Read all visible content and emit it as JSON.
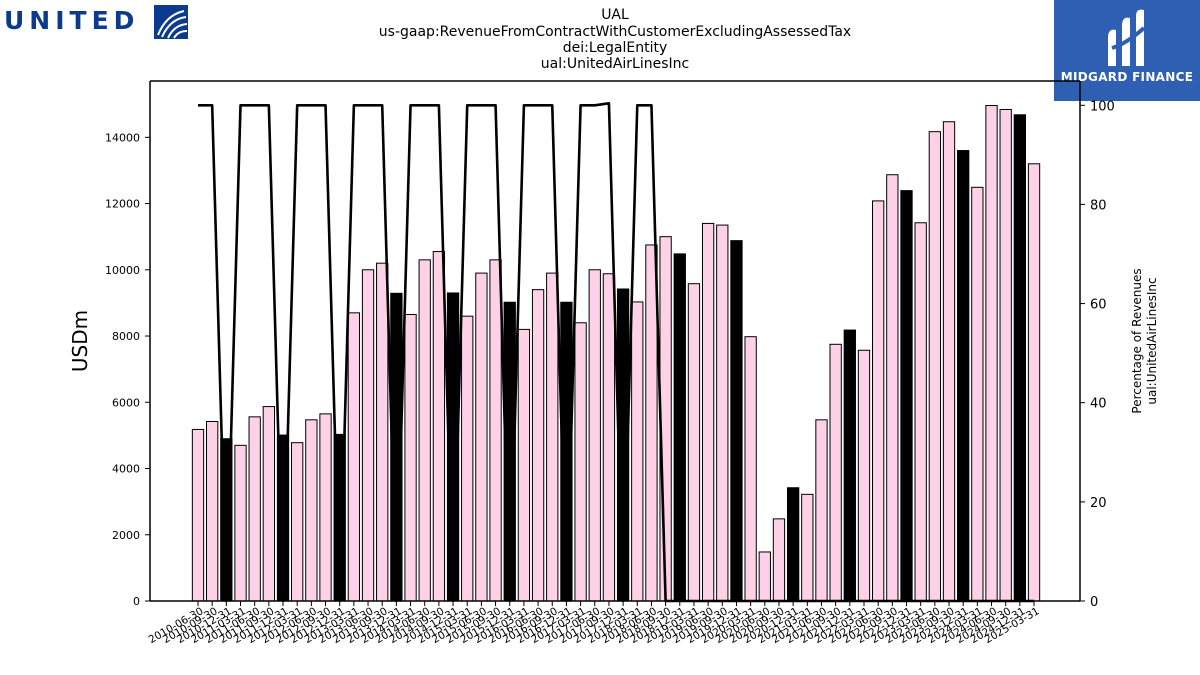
{
  "header": {
    "line1": "UAL",
    "line2": "us-gaap:RevenueFromContractWithCustomerExcludingAssessedTax",
    "line3": "dei:LegalEntity",
    "line4": "ual:UnitedAirLinesInc"
  },
  "logos": {
    "left_text": "UNITED",
    "right_text": "MIDGARD FINANCE",
    "left_color": "#0b3a8f",
    "right_bg": "#2f5fb3"
  },
  "chart_data": {
    "type": "bar",
    "ylabel": "USDm",
    "y2label_line1": "Percentage of Revenues",
    "y2label_line2": "ual:UnitedAirLinesInc",
    "ylim": [
      0,
      15700
    ],
    "y2lim": [
      0,
      104.9
    ],
    "yticks": [
      0,
      2000,
      4000,
      6000,
      8000,
      10000,
      12000,
      14000
    ],
    "y2ticks": [
      0,
      20,
      40,
      60,
      80,
      100
    ],
    "xtick_labels": [
      "2010-06-30",
      "2010-09-30",
      "2010-12-31",
      "2011-03-31",
      "2011-06-30",
      "2011-09-30",
      "2011-12-31",
      "2012-03-31",
      "2012-06-30",
      "2012-09-30",
      "2012-12-31",
      "2013-03-31",
      "2013-06-30",
      "2013-09-30",
      "2013-12-31",
      "2014-03-31",
      "2014-06-30",
      "2014-09-30",
      "2014-12-31",
      "2015-03-31",
      "2015-06-30",
      "2015-09-30",
      "2015-12-31",
      "2016-03-31",
      "2016-06-30",
      "2016-09-30",
      "2016-12-31",
      "2017-03-31",
      "2017-06-30",
      "2017-09-30",
      "2017-12-31",
      "2018-03-31",
      "2018-06-30",
      "2018-09-30",
      "2018-12-31",
      "2019-03-31",
      "2019-06-30",
      "2019-09-30",
      "2019-12-31",
      "2020-03-31",
      "2020-06-30",
      "2020-09-30",
      "2020-12-31",
      "2021-03-31",
      "2021-06-30",
      "2021-09-30",
      "2021-12-31",
      "2022-03-31",
      "2022-06-30",
      "2022-09-30",
      "2022-12-31",
      "2023-03-31",
      "2023-06-30",
      "2023-09-30",
      "2023-12-31",
      "2024-03-31",
      "2024-06-30",
      "2024-09-30",
      "2024-12-31",
      "2025-03-31"
    ],
    "values": [
      5180,
      5420,
      4900,
      4700,
      5560,
      5870,
      5010,
      4780,
      5470,
      5650,
      5030,
      8700,
      10000,
      10200,
      9290,
      8650,
      10300,
      10550,
      9300,
      8600,
      9900,
      10300,
      9020,
      8200,
      9400,
      9900,
      9020,
      8400,
      10000,
      9880,
      9420,
      9030,
      10750,
      11000,
      10480,
      9580,
      11400,
      11350,
      10880,
      7980,
      1480,
      2480,
      3420,
      3220,
      5470,
      7750,
      8180,
      7570,
      12080,
      12870,
      12390,
      11420,
      14170,
      14470,
      13600,
      12490,
      14960,
      14840,
      14680,
      13200
    ],
    "bar_types": [
      "q",
      "q",
      "a",
      "q",
      "q",
      "q",
      "a",
      "q",
      "q",
      "q",
      "a",
      "q",
      "q",
      "q",
      "a",
      "q",
      "q",
      "q",
      "a",
      "q",
      "q",
      "q",
      "a",
      "q",
      "q",
      "q",
      "a",
      "q",
      "q",
      "q",
      "a",
      "q",
      "q",
      "q",
      "a",
      "q",
      "q",
      "q",
      "a",
      "q",
      "q",
      "q",
      "a",
      "q",
      "q",
      "q",
      "a",
      "q",
      "q",
      "q",
      "a",
      "q",
      "q",
      "q",
      "a",
      "q",
      "q",
      "q",
      "a",
      "q"
    ],
    "line_series": {
      "name": "Percentage of Revenues",
      "x_index": [
        0,
        1,
        2,
        3,
        4,
        5,
        6,
        7,
        8,
        9,
        10,
        11,
        12,
        13,
        14,
        15,
        16,
        17,
        18,
        19,
        20,
        21,
        22,
        23,
        24,
        25,
        26,
        27,
        28,
        29,
        30,
        31,
        32,
        33,
        34,
        35,
        36,
        37,
        38,
        39,
        40,
        41,
        42,
        43,
        44,
        45,
        46,
        47,
        48,
        49,
        50,
        51,
        52,
        53,
        54,
        55,
        56,
        57,
        58,
        59
      ],
      "values": [
        100,
        100,
        0,
        100,
        100,
        100,
        0,
        100,
        100,
        100,
        0,
        100,
        100,
        100,
        0,
        100,
        100,
        100,
        0,
        100,
        100,
        100,
        0,
        100,
        100,
        100,
        0,
        100,
        100,
        100.4,
        0,
        100,
        100,
        0,
        0,
        0,
        0,
        0,
        0,
        0,
        0,
        0,
        0,
        0,
        0,
        0,
        0,
        0,
        0,
        0,
        0,
        0,
        0,
        0,
        0,
        0,
        0,
        0,
        0,
        0
      ]
    },
    "colors": {
      "quarter_fill": "#ffd1e6",
      "annual_fill": "#000000",
      "bar_edge": "#000000",
      "line": "#000000"
    }
  }
}
